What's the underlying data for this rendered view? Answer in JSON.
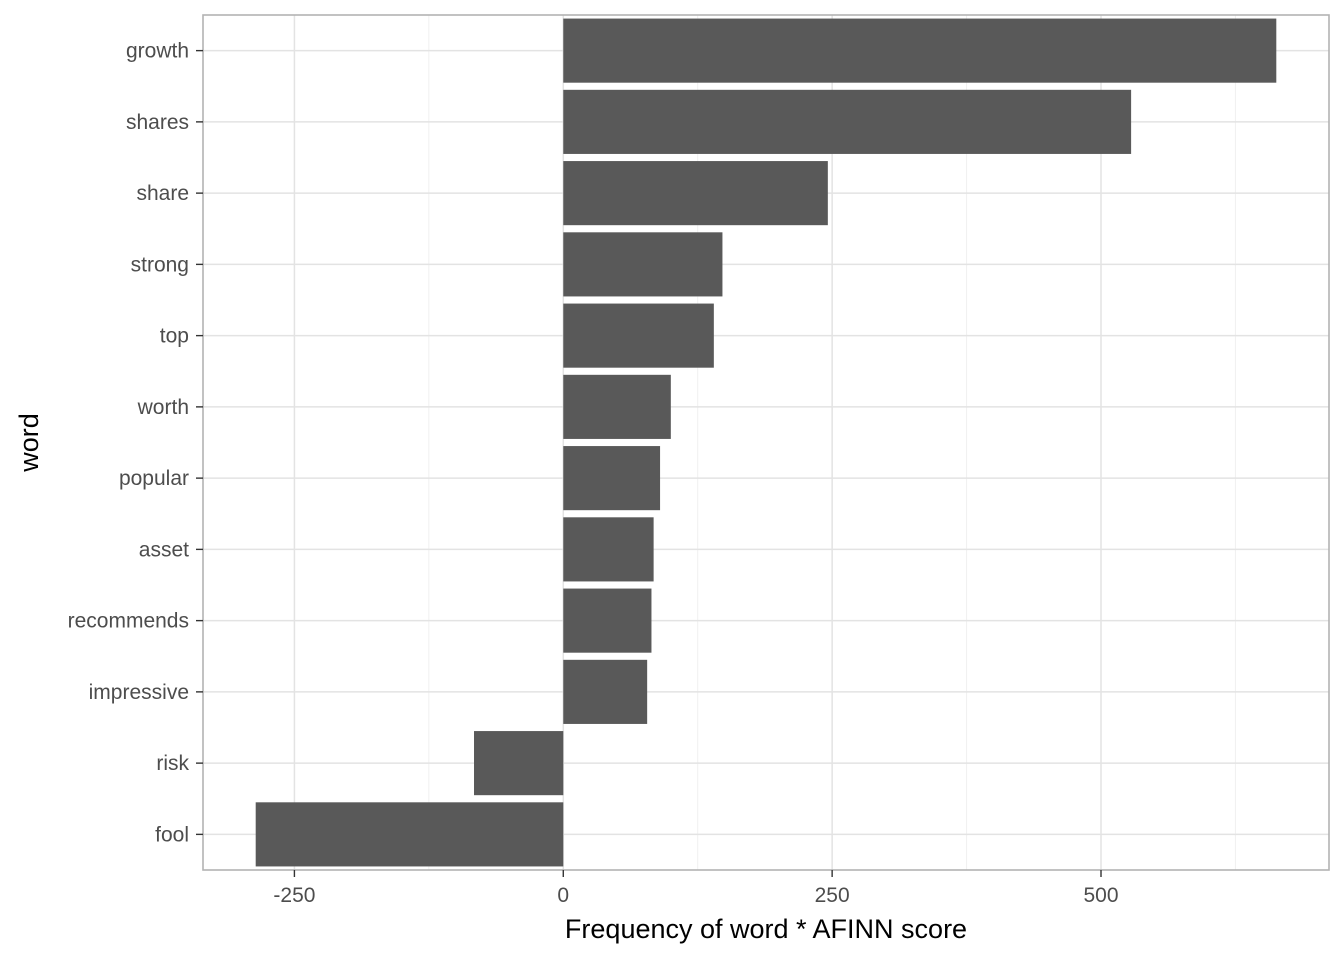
{
  "chart_data": {
    "type": "bar",
    "orientation": "horizontal",
    "title": "",
    "xlabel": "Frequency of word * AFINN score",
    "ylabel": "word",
    "categories": [
      "growth",
      "shares",
      "share",
      "strong",
      "top",
      "worth",
      "popular",
      "asset",
      "recommends",
      "impressive",
      "risk",
      "fool"
    ],
    "values": [
      663,
      528,
      246,
      148,
      140,
      100,
      90,
      84,
      82,
      78,
      -83,
      -286
    ],
    "xlim": [
      -335,
      712
    ],
    "xticks": [
      -250,
      0,
      250,
      500
    ],
    "xtick_labels": [
      "-250",
      "0",
      "250",
      "500"
    ],
    "grid": true,
    "legend": "none",
    "colors": {
      "bar": "#595959",
      "panel_border": "#b3b3b3",
      "grid_major": "#e3e3e3",
      "grid_minor": "#f0f0f0",
      "background": "#ffffff"
    }
  }
}
